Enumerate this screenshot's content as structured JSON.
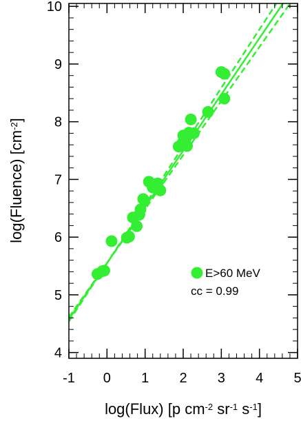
{
  "chart_data": {
    "type": "scatter",
    "xlabel": "log(Flux) [p cm⁻² sr⁻¹ s⁻¹]",
    "xlabel_parts": {
      "base": "log(Flux) [p cm",
      "exp1": "-2",
      "mid1": " sr",
      "exp2": "-1",
      "mid2": " s",
      "exp3": "-1",
      "end": "]"
    },
    "ylabel": "log(Fluence) [cm⁻²]",
    "ylabel_parts": {
      "base": "log(Fluence) [cm",
      "exp": "-2",
      "end": "]"
    },
    "xlim": [
      -1,
      5
    ],
    "ylim": [
      3.9,
      10.05
    ],
    "xticks": [
      -1,
      0,
      1,
      2,
      3,
      4,
      5
    ],
    "yticks": [
      4,
      5,
      6,
      7,
      8,
      9,
      10
    ],
    "grid": false,
    "color": "#33ee33",
    "legend": {
      "position": "bottom-right",
      "label": "E>60 MeV"
    },
    "annotation": "cc = 0.99",
    "series": [
      {
        "points": [
          {
            "x": -0.25,
            "y": 5.36
          },
          {
            "x": -0.12,
            "y": 5.41
          },
          {
            "x": -0.07,
            "y": 5.42
          },
          {
            "x": 0.12,
            "y": 5.93
          },
          {
            "x": 0.52,
            "y": 5.99
          },
          {
            "x": 0.58,
            "y": 6.01
          },
          {
            "x": 0.68,
            "y": 6.34
          },
          {
            "x": 0.78,
            "y": 6.19
          },
          {
            "x": 0.85,
            "y": 6.39
          },
          {
            "x": 0.88,
            "y": 6.48
          },
          {
            "x": 0.95,
            "y": 6.66
          },
          {
            "x": 1.1,
            "y": 6.96
          },
          {
            "x": 1.2,
            "y": 6.86
          },
          {
            "x": 1.28,
            "y": 6.92
          },
          {
            "x": 1.33,
            "y": 6.93
          },
          {
            "x": 1.4,
            "y": 6.81
          },
          {
            "x": 1.88,
            "y": 7.57
          },
          {
            "x": 1.98,
            "y": 7.63
          },
          {
            "x": 2.0,
            "y": 7.76
          },
          {
            "x": 2.05,
            "y": 7.69
          },
          {
            "x": 2.1,
            "y": 7.58
          },
          {
            "x": 2.15,
            "y": 7.81
          },
          {
            "x": 2.2,
            "y": 8.04
          },
          {
            "x": 2.28,
            "y": 7.8
          },
          {
            "x": 2.65,
            "y": 8.17
          },
          {
            "x": 3.0,
            "y": 8.86
          },
          {
            "x": 3.08,
            "y": 8.83
          },
          {
            "x": 3.08,
            "y": 8.4
          }
        ]
      }
    ],
    "fit": {
      "slope": 0.9745,
      "intercept": 5.55,
      "band_delta_slope": 0.038
    }
  }
}
